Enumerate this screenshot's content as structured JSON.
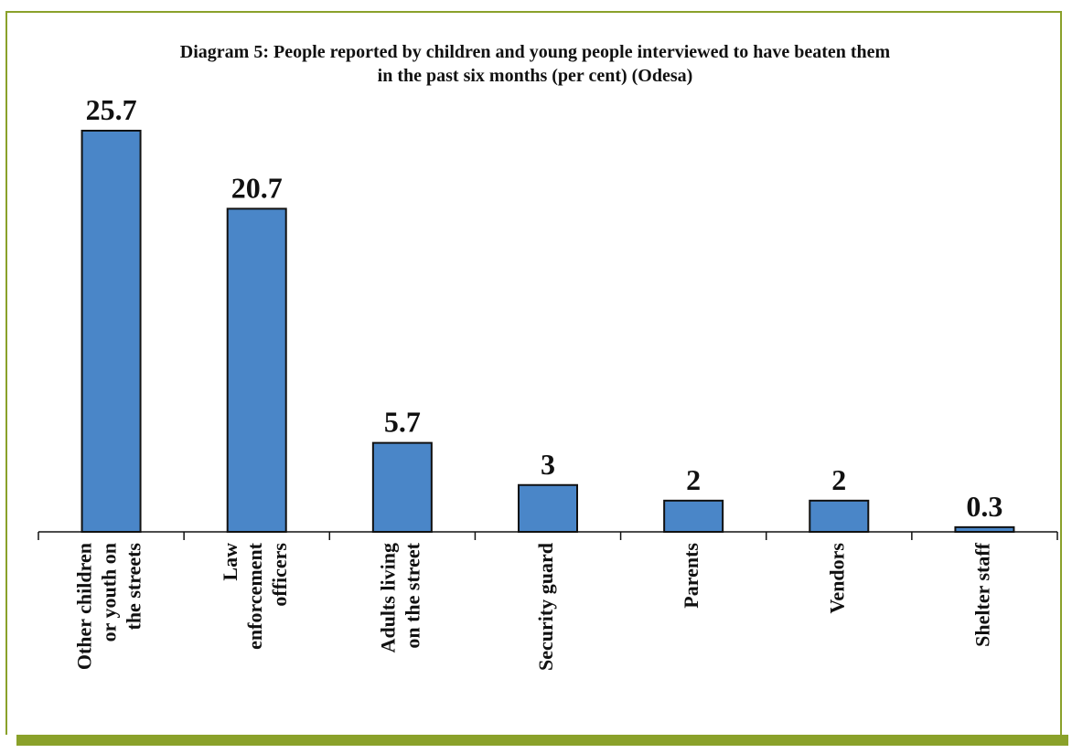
{
  "chart_data": {
    "type": "bar",
    "title": "Diagram 5: People reported by children and young people interviewed to have beaten them\nin the past six months (per cent) (Odesa)",
    "categories": [
      [
        "Other children",
        "or youth on",
        "the streets"
      ],
      [
        "Law",
        "enforcement",
        "officers"
      ],
      [
        "Adults living",
        "on the street"
      ],
      [
        "Security guard"
      ],
      [
        "Parents"
      ],
      [
        "Vendors"
      ],
      [
        "Shelter staff"
      ]
    ],
    "values": [
      25.7,
      20.7,
      5.7,
      3,
      2,
      2,
      0.3
    ],
    "value_labels": [
      "25.7",
      "20.7",
      "5.7",
      "3",
      "2",
      "2",
      "0.3"
    ],
    "ylim": [
      0,
      25.7
    ],
    "grid": false,
    "legend": "none",
    "colors": {
      "bar": "#4a86c8",
      "bar_stroke": "#111111",
      "frame": "#8aa12a"
    }
  }
}
